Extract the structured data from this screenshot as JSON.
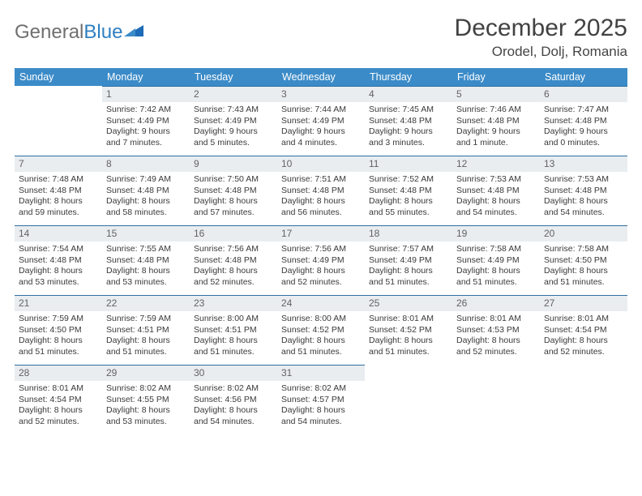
{
  "logo": {
    "text_gray": "General",
    "text_blue": "Blue"
  },
  "title": "December 2025",
  "location": "Orodel, Dolj, Romania",
  "header_bg": "#3b8bc8",
  "daynum_bg": "#e9edf0",
  "rule_color": "#2d6fa3",
  "days_of_week": [
    "Sunday",
    "Monday",
    "Tuesday",
    "Wednesday",
    "Thursday",
    "Friday",
    "Saturday"
  ],
  "weeks": [
    [
      {
        "n": "",
        "lines": []
      },
      {
        "n": "1",
        "lines": [
          "Sunrise: 7:42 AM",
          "Sunset: 4:49 PM",
          "Daylight: 9 hours",
          "and 7 minutes."
        ]
      },
      {
        "n": "2",
        "lines": [
          "Sunrise: 7:43 AM",
          "Sunset: 4:49 PM",
          "Daylight: 9 hours",
          "and 5 minutes."
        ]
      },
      {
        "n": "3",
        "lines": [
          "Sunrise: 7:44 AM",
          "Sunset: 4:49 PM",
          "Daylight: 9 hours",
          "and 4 minutes."
        ]
      },
      {
        "n": "4",
        "lines": [
          "Sunrise: 7:45 AM",
          "Sunset: 4:48 PM",
          "Daylight: 9 hours",
          "and 3 minutes."
        ]
      },
      {
        "n": "5",
        "lines": [
          "Sunrise: 7:46 AM",
          "Sunset: 4:48 PM",
          "Daylight: 9 hours",
          "and 1 minute."
        ]
      },
      {
        "n": "6",
        "lines": [
          "Sunrise: 7:47 AM",
          "Sunset: 4:48 PM",
          "Daylight: 9 hours",
          "and 0 minutes."
        ]
      }
    ],
    [
      {
        "n": "7",
        "lines": [
          "Sunrise: 7:48 AM",
          "Sunset: 4:48 PM",
          "Daylight: 8 hours",
          "and 59 minutes."
        ]
      },
      {
        "n": "8",
        "lines": [
          "Sunrise: 7:49 AM",
          "Sunset: 4:48 PM",
          "Daylight: 8 hours",
          "and 58 minutes."
        ]
      },
      {
        "n": "9",
        "lines": [
          "Sunrise: 7:50 AM",
          "Sunset: 4:48 PM",
          "Daylight: 8 hours",
          "and 57 minutes."
        ]
      },
      {
        "n": "10",
        "lines": [
          "Sunrise: 7:51 AM",
          "Sunset: 4:48 PM",
          "Daylight: 8 hours",
          "and 56 minutes."
        ]
      },
      {
        "n": "11",
        "lines": [
          "Sunrise: 7:52 AM",
          "Sunset: 4:48 PM",
          "Daylight: 8 hours",
          "and 55 minutes."
        ]
      },
      {
        "n": "12",
        "lines": [
          "Sunrise: 7:53 AM",
          "Sunset: 4:48 PM",
          "Daylight: 8 hours",
          "and 54 minutes."
        ]
      },
      {
        "n": "13",
        "lines": [
          "Sunrise: 7:53 AM",
          "Sunset: 4:48 PM",
          "Daylight: 8 hours",
          "and 54 minutes."
        ]
      }
    ],
    [
      {
        "n": "14",
        "lines": [
          "Sunrise: 7:54 AM",
          "Sunset: 4:48 PM",
          "Daylight: 8 hours",
          "and 53 minutes."
        ]
      },
      {
        "n": "15",
        "lines": [
          "Sunrise: 7:55 AM",
          "Sunset: 4:48 PM",
          "Daylight: 8 hours",
          "and 53 minutes."
        ]
      },
      {
        "n": "16",
        "lines": [
          "Sunrise: 7:56 AM",
          "Sunset: 4:48 PM",
          "Daylight: 8 hours",
          "and 52 minutes."
        ]
      },
      {
        "n": "17",
        "lines": [
          "Sunrise: 7:56 AM",
          "Sunset: 4:49 PM",
          "Daylight: 8 hours",
          "and 52 minutes."
        ]
      },
      {
        "n": "18",
        "lines": [
          "Sunrise: 7:57 AM",
          "Sunset: 4:49 PM",
          "Daylight: 8 hours",
          "and 51 minutes."
        ]
      },
      {
        "n": "19",
        "lines": [
          "Sunrise: 7:58 AM",
          "Sunset: 4:49 PM",
          "Daylight: 8 hours",
          "and 51 minutes."
        ]
      },
      {
        "n": "20",
        "lines": [
          "Sunrise: 7:58 AM",
          "Sunset: 4:50 PM",
          "Daylight: 8 hours",
          "and 51 minutes."
        ]
      }
    ],
    [
      {
        "n": "21",
        "lines": [
          "Sunrise: 7:59 AM",
          "Sunset: 4:50 PM",
          "Daylight: 8 hours",
          "and 51 minutes."
        ]
      },
      {
        "n": "22",
        "lines": [
          "Sunrise: 7:59 AM",
          "Sunset: 4:51 PM",
          "Daylight: 8 hours",
          "and 51 minutes."
        ]
      },
      {
        "n": "23",
        "lines": [
          "Sunrise: 8:00 AM",
          "Sunset: 4:51 PM",
          "Daylight: 8 hours",
          "and 51 minutes."
        ]
      },
      {
        "n": "24",
        "lines": [
          "Sunrise: 8:00 AM",
          "Sunset: 4:52 PM",
          "Daylight: 8 hours",
          "and 51 minutes."
        ]
      },
      {
        "n": "25",
        "lines": [
          "Sunrise: 8:01 AM",
          "Sunset: 4:52 PM",
          "Daylight: 8 hours",
          "and 51 minutes."
        ]
      },
      {
        "n": "26",
        "lines": [
          "Sunrise: 8:01 AM",
          "Sunset: 4:53 PM",
          "Daylight: 8 hours",
          "and 52 minutes."
        ]
      },
      {
        "n": "27",
        "lines": [
          "Sunrise: 8:01 AM",
          "Sunset: 4:54 PM",
          "Daylight: 8 hours",
          "and 52 minutes."
        ]
      }
    ],
    [
      {
        "n": "28",
        "lines": [
          "Sunrise: 8:01 AM",
          "Sunset: 4:54 PM",
          "Daylight: 8 hours",
          "and 52 minutes."
        ]
      },
      {
        "n": "29",
        "lines": [
          "Sunrise: 8:02 AM",
          "Sunset: 4:55 PM",
          "Daylight: 8 hours",
          "and 53 minutes."
        ]
      },
      {
        "n": "30",
        "lines": [
          "Sunrise: 8:02 AM",
          "Sunset: 4:56 PM",
          "Daylight: 8 hours",
          "and 54 minutes."
        ]
      },
      {
        "n": "31",
        "lines": [
          "Sunrise: 8:02 AM",
          "Sunset: 4:57 PM",
          "Daylight: 8 hours",
          "and 54 minutes."
        ]
      },
      {
        "n": "",
        "lines": []
      },
      {
        "n": "",
        "lines": []
      },
      {
        "n": "",
        "lines": []
      }
    ]
  ]
}
